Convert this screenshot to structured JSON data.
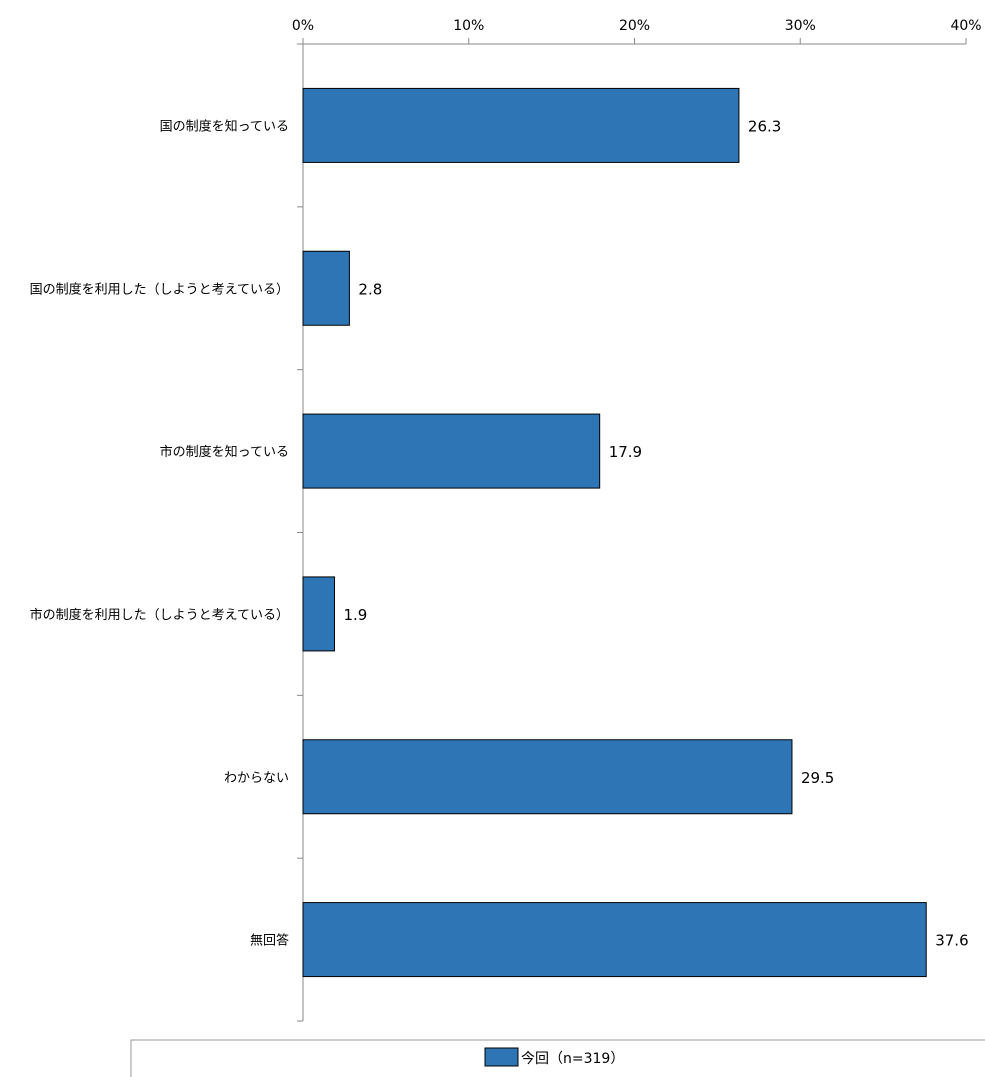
{
  "chart_data": {
    "type": "bar",
    "orientation": "horizontal",
    "categories": [
      "国の制度を知っている",
      "国の制度を利用した（しようと考えている）",
      "市の制度を知っている",
      "市の制度を利用した（しようと考えている）",
      "わからない",
      "無回答"
    ],
    "series": [
      {
        "name": "今回（n=319）",
        "values": [
          26.3,
          2.8,
          17.9,
          1.9,
          29.5,
          37.6
        ],
        "color": "#2e75b6"
      }
    ],
    "data_labels": [
      "26.3",
      "2.8",
      "17.9",
      "1.9",
      "29.5",
      "37.6"
    ],
    "x_ticks": [
      "0%",
      "10%",
      "20%",
      "30%",
      "40%"
    ],
    "xlim": [
      0,
      40
    ],
    "x_axis_position": "top",
    "grid": false,
    "legend_position": "bottom",
    "title": "",
    "xlabel": "",
    "ylabel": ""
  }
}
